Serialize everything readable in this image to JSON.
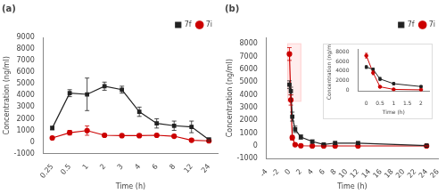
{
  "chart_data": [
    {
      "type": "line",
      "title": "(a)",
      "xlabel": "Time (h)",
      "ylabel": "Concentration (ng/ml)",
      "categories": [
        "0.25",
        "0.5",
        "1",
        "2",
        "3",
        "4",
        "6",
        "8",
        "12",
        "24"
      ],
      "series": [
        {
          "name": "7f",
          "color": "#222222",
          "marker": "square",
          "values": [
            1200,
            4200,
            4100,
            4800,
            4500,
            2600,
            1600,
            1400,
            1300,
            200
          ],
          "yerr": [
            150,
            300,
            1400,
            350,
            300,
            400,
            400,
            400,
            500,
            150
          ]
        },
        {
          "name": "7i",
          "color": "#cc0000",
          "marker": "circle",
          "values": [
            350,
            800,
            980,
            580,
            550,
            550,
            580,
            500,
            150,
            100
          ],
          "yerr": [
            80,
            200,
            400,
            100,
            100,
            100,
            100,
            100,
            100,
            80
          ]
        }
      ],
      "ylim": [
        -1000,
        9000
      ],
      "yticks": [
        -1000,
        0,
        1000,
        2000,
        3000,
        4000,
        5000,
        6000,
        7000,
        8000,
        9000
      ],
      "grid": false,
      "legend": "upper right"
    },
    {
      "type": "line",
      "title": "(b)",
      "xlabel": "Time (h)",
      "ylabel": "Concentration (ng/ml)",
      "x": [
        0,
        0.25,
        0.5,
        1,
        2,
        4,
        6,
        8,
        12,
        24
      ],
      "series": [
        {
          "name": "7f",
          "color": "#222222",
          "marker": "square",
          "values": [
            4800,
            4300,
            2300,
            1300,
            700,
            350,
            120,
            230,
            220,
            30
          ],
          "yerr": [
            300,
            300,
            350,
            250,
            180,
            120,
            80,
            120,
            120,
            30
          ]
        },
        {
          "name": "7i",
          "color": "#cc0000",
          "marker": "circle",
          "values": [
            7200,
            3600,
            650,
            100,
            20,
            5,
            5,
            5,
            5,
            5
          ],
          "yerr": [
            500,
            400,
            180,
            60,
            20,
            5,
            5,
            5,
            5,
            5
          ]
        }
      ],
      "xlim": [
        -4,
        26
      ],
      "xticks": [
        -4,
        -2,
        0,
        2,
        4,
        6,
        8,
        10,
        12,
        14,
        16,
        18,
        20,
        22,
        24,
        26
      ],
      "ylim": [
        -1000,
        8500
      ],
      "yticks": [
        -1000,
        0,
        1000,
        2000,
        3000,
        4000,
        5000,
        6000,
        7000,
        8000
      ],
      "highlight": {
        "x": [
          -0.3,
          2.0
        ],
        "y": [
          3500,
          8000
        ],
        "color": "#ffcccc"
      },
      "grid": false,
      "legend": "upper right"
    },
    {
      "type": "line",
      "xlabel": "Time (h)",
      "ylabel": "Concentration (ng/ml)",
      "x": [
        0,
        0.25,
        0.5,
        1,
        2
      ],
      "series": [
        {
          "name": "7f",
          "color": "#222222",
          "marker": "square",
          "values": [
            4800,
            4300,
            2300,
            1300,
            700
          ],
          "yerr": [
            300,
            300,
            350,
            250,
            180
          ]
        },
        {
          "name": "7i",
          "color": "#cc0000",
          "marker": "circle",
          "values": [
            7200,
            3600,
            650,
            100,
            20
          ],
          "yerr": [
            500,
            400,
            180,
            60,
            20
          ]
        }
      ],
      "xlim": [
        -0.3,
        2.3
      ],
      "xticks": [
        0,
        0.5,
        1,
        1.5,
        2
      ],
      "ylim": [
        -300,
        8500
      ],
      "yticks": [
        0,
        2000,
        4000,
        6000,
        8000
      ],
      "grid": false
    }
  ]
}
